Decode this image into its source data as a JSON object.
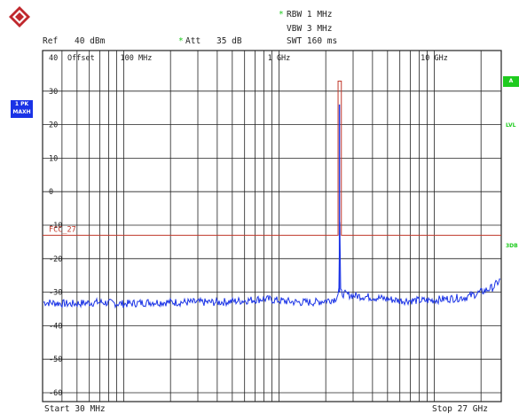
{
  "header": {
    "rbw": "RBW 1 MHz",
    "vbw": "VBW 3 MHz",
    "swt": "SWT 160 ms",
    "ref_label": "Ref",
    "ref_value": "40 dBm",
    "att_label": "Att",
    "att_value": "35 dB",
    "offset": "Offset",
    "star_marker": "*"
  },
  "left_panel": {
    "trace_box_1": "1 PK",
    "trace_box_2": "MAXH"
  },
  "right_panel": {
    "a_badge": "A",
    "lvl": "LVL",
    "three_db": "3DB"
  },
  "footer": {
    "start": "Start 30 MHz",
    "stop": "Stop 27 GHz"
  },
  "colors": {
    "trace": "#1a33e6",
    "limit_line": "#c0392b",
    "grid": "#222222",
    "badge_green": "#1ecb1e"
  },
  "chart_data": {
    "type": "line",
    "x_scale": "log",
    "xlim": [
      30,
      27000
    ],
    "x_unit": "MHz",
    "ylim": [
      -65,
      40
    ],
    "y_unit": "dBm",
    "y_ticks": [
      40,
      30,
      20,
      10,
      0,
      -10,
      -20,
      -30,
      -40,
      -50,
      -60
    ],
    "y_tick_labels": [
      "40",
      "30",
      "20",
      "10",
      "0",
      "-10",
      "-20",
      "-30",
      "-40",
      "-50",
      "-60"
    ],
    "x_tick_labels": [
      {
        "x": 100,
        "label": "100 MHz"
      },
      {
        "x": 1000,
        "label": "1 GHz"
      },
      {
        "x": 10000,
        "label": "10 GHz"
      }
    ],
    "grid": true,
    "limit_line": {
      "label": "FCC_27",
      "points": [
        [
          30,
          -13
        ],
        [
          2400,
          -13
        ],
        [
          2400,
          33
        ],
        [
          2520,
          33
        ],
        [
          2520,
          -13
        ],
        [
          27000,
          -13
        ]
      ]
    },
    "series": [
      {
        "points": [
          [
            30,
            -33
          ],
          [
            45,
            -33.5
          ],
          [
            70,
            -33
          ],
          [
            100,
            -33.5
          ],
          [
            150,
            -33
          ],
          [
            250,
            -33
          ],
          [
            400,
            -33
          ],
          [
            600,
            -32.5
          ],
          [
            800,
            -32
          ],
          [
            1000,
            -32.5
          ],
          [
            1300,
            -33
          ],
          [
            1700,
            -33
          ],
          [
            2000,
            -32.5
          ],
          [
            2300,
            -32
          ],
          [
            2430,
            -30
          ],
          [
            2450,
            26
          ],
          [
            2470,
            -30
          ],
          [
            2600,
            -30.5
          ],
          [
            3000,
            -31
          ],
          [
            4000,
            -31.5
          ],
          [
            6000,
            -32.5
          ],
          [
            9000,
            -32.5
          ],
          [
            12000,
            -32
          ],
          [
            16000,
            -31.5
          ],
          [
            20000,
            -30
          ],
          [
            24000,
            -28.5
          ],
          [
            27000,
            -26
          ]
        ]
      }
    ]
  }
}
